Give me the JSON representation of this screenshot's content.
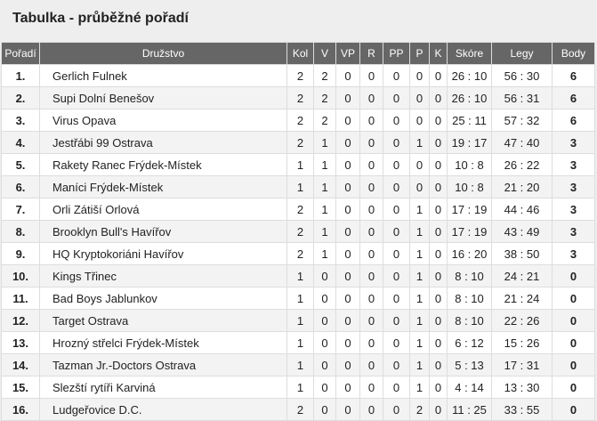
{
  "title": "Tabulka - průběžné pořadí",
  "columns": [
    "Pořadí",
    "Družstvo",
    "Kol",
    "V",
    "VP",
    "R",
    "PP",
    "P",
    "K",
    "Skóre",
    "Legy",
    "Body"
  ],
  "rows": [
    [
      "1.",
      "Gerlich Fulnek",
      "2",
      "2",
      "0",
      "0",
      "0",
      "0",
      "0",
      "26 : 10",
      "56 : 30",
      "6"
    ],
    [
      "2.",
      "Supi Dolní Benešov",
      "2",
      "2",
      "0",
      "0",
      "0",
      "0",
      "0",
      "26 : 10",
      "56 : 31",
      "6"
    ],
    [
      "3.",
      "Virus Opava",
      "2",
      "2",
      "0",
      "0",
      "0",
      "0",
      "0",
      "25 : 11",
      "57 : 32",
      "6"
    ],
    [
      "4.",
      "Jestřábi 99 Ostrava",
      "2",
      "1",
      "0",
      "0",
      "0",
      "1",
      "0",
      "19 : 17",
      "47 : 40",
      "3"
    ],
    [
      "5.",
      "Rakety Ranec Frýdek-Místek",
      "1",
      "1",
      "0",
      "0",
      "0",
      "0",
      "0",
      "10 : 8",
      "26 : 22",
      "3"
    ],
    [
      "6.",
      "Maníci Frýdek-Místek",
      "1",
      "1",
      "0",
      "0",
      "0",
      "0",
      "0",
      "10 : 8",
      "21 : 20",
      "3"
    ],
    [
      "7.",
      "Orli Zátiší Orlová",
      "2",
      "1",
      "0",
      "0",
      "0",
      "1",
      "0",
      "17 : 19",
      "44 : 46",
      "3"
    ],
    [
      "8.",
      "Brooklyn Bull's Havířov",
      "2",
      "1",
      "0",
      "0",
      "0",
      "1",
      "0",
      "17 : 19",
      "43 : 49",
      "3"
    ],
    [
      "9.",
      "HQ Kryptokoriáni Havířov",
      "2",
      "1",
      "0",
      "0",
      "0",
      "1",
      "0",
      "16 : 20",
      "38 : 50",
      "3"
    ],
    [
      "10.",
      "Kings Třinec",
      "1",
      "0",
      "0",
      "0",
      "0",
      "1",
      "0",
      "8 : 10",
      "24 : 21",
      "0"
    ],
    [
      "11.",
      "Bad Boys Jablunkov",
      "1",
      "0",
      "0",
      "0",
      "0",
      "1",
      "0",
      "8 : 10",
      "21 : 24",
      "0"
    ],
    [
      "12.",
      "Target Ostrava",
      "1",
      "0",
      "0",
      "0",
      "0",
      "1",
      "0",
      "8 : 10",
      "22 : 26",
      "0"
    ],
    [
      "13.",
      "Hrozný střelci Frýdek-Místek",
      "1",
      "0",
      "0",
      "0",
      "0",
      "1",
      "0",
      "6 : 12",
      "15 : 26",
      "0"
    ],
    [
      "14.",
      "Tazman Jr.-Doctors Ostrava",
      "1",
      "0",
      "0",
      "0",
      "0",
      "1",
      "0",
      "5 : 13",
      "17 : 31",
      "0"
    ],
    [
      "15.",
      "Slezští rytíři Karviná",
      "1",
      "0",
      "0",
      "0",
      "0",
      "1",
      "0",
      "4 : 14",
      "13 : 30",
      "0"
    ],
    [
      "16.",
      "Ludgeřovice D.C.",
      "2",
      "0",
      "0",
      "0",
      "0",
      "2",
      "0",
      "11 : 25",
      "33 : 55",
      "0"
    ]
  ],
  "colors": {
    "header_bg": "#666666",
    "header_text": "#ffffff",
    "page_bg": "#eeeeee"
  }
}
